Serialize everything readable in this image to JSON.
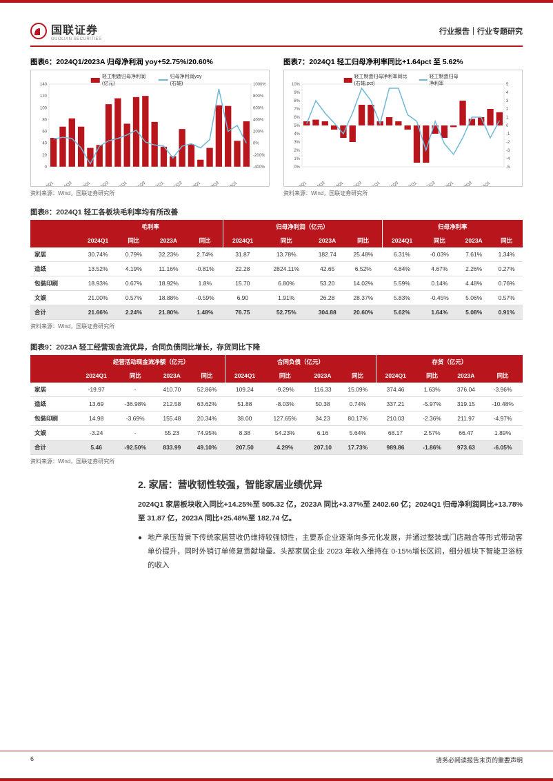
{
  "header": {
    "company_cn": "国联证券",
    "company_en": "GUOLIAN SECURITIES",
    "right": "行业报告｜行业专题研究",
    "logo_color": "#b8151c"
  },
  "chart6": {
    "title": "图表6：2024Q1/2023A 归母净利润 yoy+52.75%/20.60%",
    "legend_bar": "轻工制造归母净利润 (亿元)",
    "legend_line": "归母净利润yoy (右轴)",
    "bar_color": "#b8151c",
    "line_color": "#6fb8d8",
    "y_left": {
      "min": 0,
      "max": 140,
      "ticks": [
        0,
        20,
        40,
        60,
        80,
        100,
        120,
        140
      ]
    },
    "y_right": {
      "min": -400,
      "max": 1000,
      "ticks": [
        -400,
        -200,
        0,
        200,
        400,
        600,
        800,
        1000
      ]
    },
    "x_labels": [
      "2019Q1",
      "2019Q3",
      "2020Q1",
      "2020Q3",
      "2021Q1",
      "2021Q3",
      "2022Q1",
      "2022Q3",
      "2023Q1",
      "2023Q3",
      "2024Q1"
    ],
    "bars": [
      49,
      68,
      82,
      68,
      32,
      37,
      106,
      116,
      73,
      118,
      120,
      76,
      34,
      18,
      64,
      38,
      12,
      32,
      104,
      103,
      44,
      77
    ],
    "line": [
      70,
      100,
      80,
      -80,
      -350,
      -50,
      40,
      80,
      140,
      220,
      20,
      -30,
      -50,
      -250,
      -50,
      -10,
      -80,
      60,
      920,
      200,
      300,
      0
    ],
    "source": "资料来源：Wind，国联证券研究所"
  },
  "chart7": {
    "title": "图表7：2024Q1 轻工归母净利率同比+1.64pct 至 5.62%",
    "legend_bar": "轻工制造归母净利率同比 (右轴,pct)",
    "legend_line": "轻工制造归母净利率",
    "bar_color": "#b8151c",
    "line_color": "#6fb8d8",
    "y_left": {
      "min": 0,
      "max": 10,
      "ticks": [
        0,
        1,
        2,
        3,
        4,
        5,
        6,
        7,
        8,
        9,
        10
      ]
    },
    "y_right": {
      "min": -5,
      "max": 5,
      "ticks": [
        -5,
        -4,
        -3,
        -2,
        -1,
        0,
        1,
        2,
        3,
        4,
        5
      ]
    },
    "x_labels": [
      "2019Q1",
      "2019Q3",
      "2020Q1",
      "2020Q3",
      "2021Q1",
      "2021Q3",
      "2022Q1",
      "2022Q3",
      "2023Q1",
      "2023Q3",
      "2024Q1"
    ],
    "bars": [
      0.5,
      0.7,
      0.5,
      -0.5,
      -1.5,
      -2.0,
      2.5,
      2.5,
      0.5,
      1.0,
      0.5,
      -0.5,
      -4.5,
      -4.5,
      -1.0,
      -1.5,
      -0.2,
      3.0,
      0.8,
      1.0,
      2.0,
      1.6
    ],
    "line": [
      5.2,
      8.0,
      6.5,
      5.3,
      4.0,
      6.5,
      9.5,
      8.0,
      5.2,
      9.5,
      9.5,
      6.3,
      5.5,
      2.0,
      5.5,
      2.8,
      1.5,
      3.5,
      6.0,
      6.0,
      3.5,
      5.6
    ],
    "source": "资料来源：Wind，国联证券研究所"
  },
  "table8": {
    "title": "图表8：2024Q1 轻工各板块毛利率均有所改善",
    "groups": [
      "毛利率",
      "归母净利润（亿元）",
      "归母净利率"
    ],
    "subcols": [
      "2024Q1",
      "同比",
      "2023A",
      "同比"
    ],
    "rows": [
      {
        "label": "家居",
        "v": [
          "30.74%",
          "0.79%",
          "32.23%",
          "2.74%",
          "31.87",
          "13.78%",
          "182.74",
          "25.48%",
          "6.31%",
          "-0.03%",
          "7.61%",
          "1.34%"
        ]
      },
      {
        "label": "造纸",
        "v": [
          "13.52%",
          "4.19%",
          "11.16%",
          "-0.81%",
          "22.28",
          "2824.11%",
          "42.65",
          "6.52%",
          "4.84%",
          "4.67%",
          "2.26%",
          "0.27%"
        ]
      },
      {
        "label": "包装印刷",
        "v": [
          "18.93%",
          "0.67%",
          "18.92%",
          "1.8%",
          "15.70",
          "6.80%",
          "53.20",
          "14.02%",
          "5.59%",
          "0.14%",
          "4.48%",
          "0.76%"
        ]
      },
      {
        "label": "文娱",
        "v": [
          "21.00%",
          "0.57%",
          "18.88%",
          "-0.59%",
          "6.90",
          "1.91%",
          "26.28",
          "28.37%",
          "5.83%",
          "-0.45%",
          "5.06%",
          "0.57%"
        ]
      }
    ],
    "total": {
      "label": "合计",
      "v": [
        "21.66%",
        "2.24%",
        "21.80%",
        "1.48%",
        "76.75",
        "52.75%",
        "304.88",
        "20.60%",
        "5.62%",
        "1.64%",
        "5.08%",
        "0.91%"
      ]
    },
    "source": "资料来源：Wind，国联证券研究所"
  },
  "table9": {
    "title": "图表9：2023A 轻工经营现金流优异，合同负债同比增长，存货同比下降",
    "groups": [
      "经营活动现金流净额（亿元）",
      "合同负债（亿元）",
      "存货（亿元）"
    ],
    "subcols": [
      "2024Q1",
      "同比",
      "2023A",
      "同比"
    ],
    "rows": [
      {
        "label": "家居",
        "v": [
          "-19.97",
          "-",
          "410.70",
          "52.86%",
          "109.24",
          "-9.29%",
          "116.33",
          "15.09%",
          "374.46",
          "1.63%",
          "376.04",
          "-3.96%"
        ]
      },
      {
        "label": "造纸",
        "v": [
          "13.69",
          "-36.98%",
          "212.58",
          "63.62%",
          "51.88",
          "-8.03%",
          "50.38",
          "0.74%",
          "337.21",
          "-5.97%",
          "319.15",
          "-10.48%"
        ]
      },
      {
        "label": "包装印刷",
        "v": [
          "14.98",
          "-3.69%",
          "155.48",
          "20.34%",
          "38.00",
          "127.65%",
          "34.23",
          "80.17%",
          "210.03",
          "-2.36%",
          "211.97",
          "-4.97%"
        ]
      },
      {
        "label": "文娱",
        "v": [
          "-3.24",
          "-",
          "55.23",
          "74.95%",
          "8.38",
          "54.23%",
          "6.16",
          "5.64%",
          "68.17",
          "2.57%",
          "66.47",
          "1.89%"
        ]
      }
    ],
    "total": {
      "label": "合计",
      "v": [
        "5.46",
        "-92.50%",
        "833.99",
        "49.10%",
        "207.50",
        "4.29%",
        "207.10",
        "17.73%",
        "989.86",
        "-1.86%",
        "973.63",
        "-6.05%"
      ]
    },
    "source": "资料来源：Wind，国联证券研究所"
  },
  "section2": {
    "heading": "2. 家居：营收韧性较强，智能家居业绩优异",
    "p1": "2024Q1 家居板块收入同比+14.25%至 505.32 亿，2023A 同比+3.37%至 2402.60 亿；2024Q1 归母净利润同比+13.78%至 31.87 亿，2023A 同比+25.48%至 182.74 亿。",
    "bullet": "地产承压背景下传统家居营收仍维持较强韧性，主要系企业逐渐向多元化发展，并通过整装或门店融合等形式带动客单价提升，同时外销订单修复贡献增量。头部家居企业 2023 年收入维持在 0-15%增长区间，细分板块下智能卫浴标的收入"
  },
  "footer": {
    "page": "6",
    "disclaimer": "请务必阅读报告末页的重要声明"
  }
}
